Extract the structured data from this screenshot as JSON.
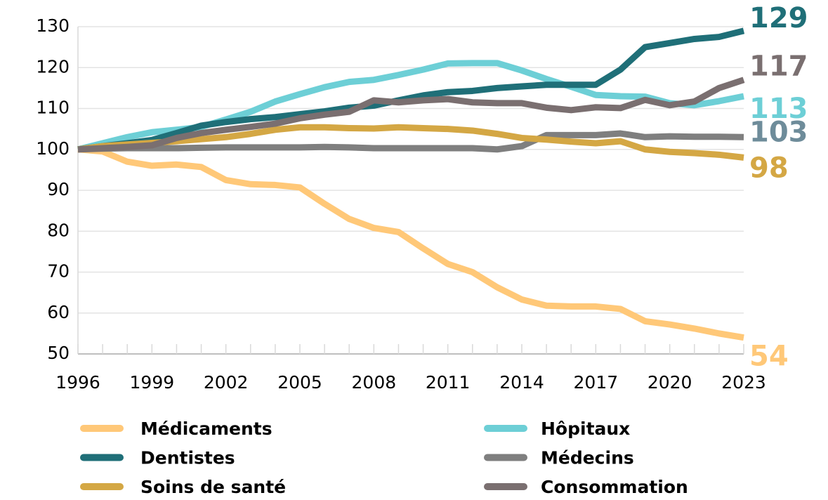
{
  "chart_data": {
    "type": "line",
    "x": [
      1996,
      1997,
      1998,
      1999,
      2000,
      2001,
      2002,
      2003,
      2004,
      2005,
      2006,
      2007,
      2008,
      2009,
      2010,
      2011,
      2012,
      2013,
      2014,
      2015,
      2016,
      2017,
      2018,
      2019,
      2020,
      2021,
      2022,
      2023
    ],
    "xticks": [
      1996,
      1999,
      2002,
      2005,
      2008,
      2011,
      2014,
      2017,
      2020,
      2023
    ],
    "xlim": [
      1996,
      2023
    ],
    "ylim": [
      50,
      130
    ],
    "yticks": [
      50,
      60,
      70,
      80,
      90,
      100,
      110,
      120,
      130
    ],
    "grid": true,
    "series": [
      {
        "name": "Médicaments",
        "color": "#FFC878",
        "values": [
          100,
          99.5,
          97,
          96,
          96.3,
          95.7,
          92.5,
          91.5,
          91.3,
          90.7,
          86.7,
          83,
          80.8,
          79.8,
          75.8,
          72,
          70,
          66.3,
          63.3,
          61.8,
          61.6,
          61.6,
          61,
          58,
          57.2,
          56.2,
          55,
          54
        ]
      },
      {
        "name": "Hôpitaux",
        "color": "#6DCFD6",
        "values": [
          100,
          101.5,
          103,
          104.2,
          104.8,
          105.5,
          107.3,
          109.2,
          111.7,
          113.5,
          115.2,
          116.5,
          117,
          118.2,
          119.5,
          121,
          121.1,
          121.1,
          119.3,
          117.2,
          115.3,
          113.3,
          113,
          112.9,
          111.3,
          110.8,
          111.8,
          113
        ]
      },
      {
        "name": "Dentistes",
        "color": "#1F6F78",
        "values": [
          100,
          100.8,
          101.5,
          102.3,
          104,
          105.8,
          106.7,
          107.4,
          107.9,
          108.6,
          109.3,
          110.2,
          110.7,
          112,
          113.2,
          114,
          114.3,
          115,
          115.4,
          115.8,
          115.8,
          115.8,
          119.5,
          125,
          126,
          127,
          127.5,
          129
        ]
      },
      {
        "name": "Médecins",
        "color": "#7F7F7F",
        "values": [
          100,
          100.2,
          100.3,
          100.3,
          100.3,
          100.4,
          100.5,
          100.5,
          100.5,
          100.5,
          100.6,
          100.5,
          100.3,
          100.3,
          100.3,
          100.3,
          100.3,
          100,
          100.8,
          103.5,
          103.5,
          103.5,
          103.9,
          103,
          103.2,
          103.1,
          103.1,
          103
        ]
      },
      {
        "name": "Soins de santé",
        "color": "#D4A744",
        "values": [
          100,
          100.8,
          101.2,
          101.6,
          102,
          102.5,
          103,
          103.8,
          104.8,
          105.4,
          105.4,
          105.2,
          105.1,
          105.4,
          105.2,
          105,
          104.6,
          103.8,
          102.8,
          102.4,
          101.9,
          101.5,
          102,
          100,
          99.4,
          99.1,
          98.7,
          98
        ]
      },
      {
        "name": "Consommation",
        "color": "#7A6F70",
        "values": [
          100,
          100.3,
          100.6,
          101,
          102.8,
          104,
          104.8,
          105.5,
          106.3,
          107.6,
          108.5,
          109.2,
          112,
          111.5,
          112,
          112.3,
          111.5,
          111.3,
          111.3,
          110.2,
          109.6,
          110.3,
          110.1,
          112.1,
          110.8,
          111.7,
          115,
          117
        ]
      }
    ]
  }
}
